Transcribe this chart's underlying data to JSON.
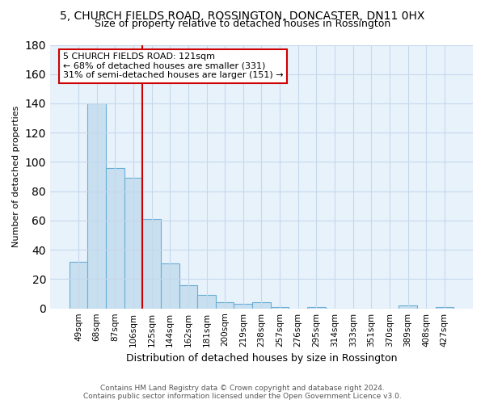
{
  "title": "5, CHURCH FIELDS ROAD, ROSSINGTON, DONCASTER, DN11 0HX",
  "subtitle": "Size of property relative to detached houses in Rossington",
  "xlabel": "Distribution of detached houses by size in Rossington",
  "ylabel": "Number of detached properties",
  "categories": [
    "49sqm",
    "68sqm",
    "87sqm",
    "106sqm",
    "125sqm",
    "144sqm",
    "162sqm",
    "181sqm",
    "200sqm",
    "219sqm",
    "238sqm",
    "257sqm",
    "276sqm",
    "295sqm",
    "314sqm",
    "333sqm",
    "351sqm",
    "370sqm",
    "389sqm",
    "408sqm",
    "427sqm"
  ],
  "values": [
    32,
    140,
    96,
    89,
    61,
    31,
    16,
    9,
    4,
    3,
    4,
    1,
    0,
    1,
    0,
    0,
    0,
    0,
    2,
    0,
    1
  ],
  "bar_color": "#c8dff0",
  "bar_edge_color": "#6aaed6",
  "red_line_x": 4,
  "annotation_line1": "5 CHURCH FIELDS ROAD: 121sqm",
  "annotation_line2": "← 68% of detached houses are smaller (331)",
  "annotation_line3": "31% of semi-detached houses are larger (151) →",
  "annotation_box_color": "#ffffff",
  "annotation_box_edge_color": "#cc0000",
  "ylim": [
    0,
    180
  ],
  "yticks": [
    0,
    20,
    40,
    60,
    80,
    100,
    120,
    140,
    160,
    180
  ],
  "footer": "Contains HM Land Registry data © Crown copyright and database right 2024.\nContains public sector information licensed under the Open Government Licence v3.0.",
  "bg_color": "#ffffff",
  "plot_bg_color": "#e8f2fb",
  "grid_color": "#c5d8ec",
  "title_fontsize": 10,
  "subtitle_fontsize": 9
}
